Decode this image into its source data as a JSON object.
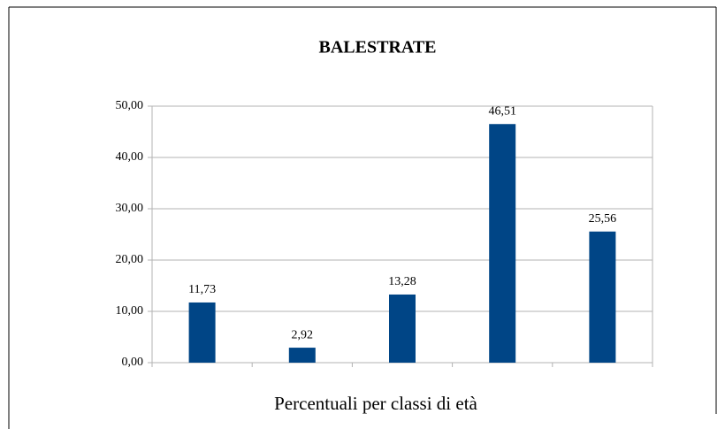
{
  "chart_data": {
    "type": "bar",
    "title": "BALESTRATE",
    "x_label": "Percentuali per classi di età",
    "categories": [
      null,
      null,
      null,
      null,
      null
    ],
    "values": [
      11.73,
      2.92,
      13.28,
      46.51,
      25.56
    ],
    "value_labels": [
      "11,73",
      "2,92",
      "13,28",
      "46,51",
      "25,56"
    ],
    "color": "#004586",
    "ylim": [
      0,
      50
    ],
    "yticks": [
      {
        "value": 0,
        "label": "0,00"
      },
      {
        "value": 10,
        "label": "10,00"
      },
      {
        "value": 20,
        "label": "20,00"
      },
      {
        "value": 30,
        "label": "30,00"
      },
      {
        "value": 40,
        "label": "40,00"
      },
      {
        "value": 50,
        "label": "50,00"
      }
    ],
    "grid": true
  }
}
